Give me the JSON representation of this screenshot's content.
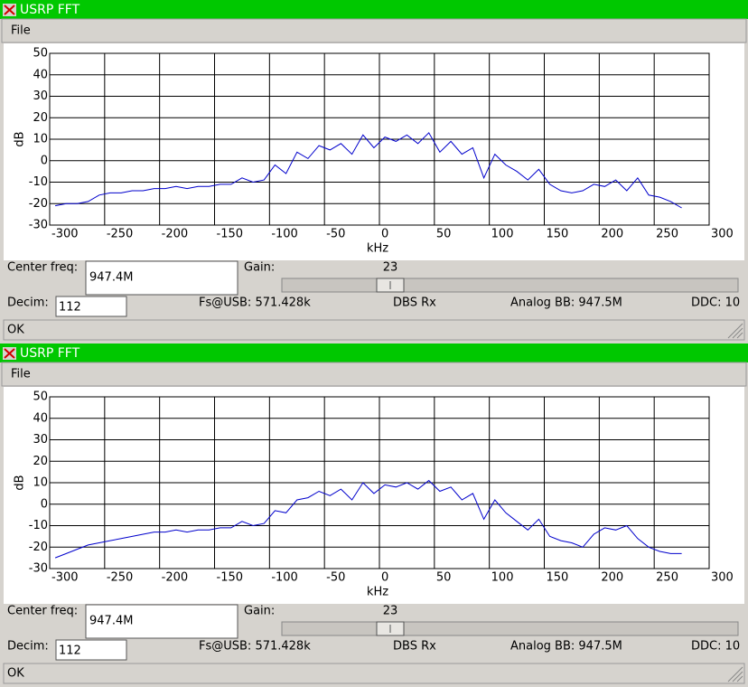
{
  "chart_data": [
    {
      "type": "line",
      "xlabel": "kHz",
      "ylabel": "dB",
      "x": [
        -295,
        -285,
        -275,
        -265,
        -255,
        -245,
        -235,
        -225,
        -215,
        -205,
        -195,
        -185,
        -175,
        -165,
        -155,
        -145,
        -135,
        -125,
        -115,
        -105,
        -95,
        -85,
        -75,
        -65,
        -55,
        -45,
        -35,
        -25,
        -15,
        -5,
        5,
        15,
        25,
        35,
        45,
        55,
        65,
        75,
        85,
        95,
        105,
        115,
        125,
        135,
        145,
        155,
        165,
        175,
        185,
        195,
        205,
        215,
        225,
        235,
        245,
        255,
        265,
        275
      ],
      "values": [
        -21,
        -20,
        -20,
        -19,
        -16,
        -15,
        -15,
        -14,
        -14,
        -13,
        -13,
        -12,
        -13,
        -12,
        -12,
        -11,
        -11,
        -8,
        -10,
        -9,
        -2,
        -6,
        4,
        1,
        7,
        5,
        8,
        3,
        12,
        6,
        11,
        9,
        12,
        8,
        13,
        4,
        9,
        3,
        6,
        -8,
        3,
        -2,
        -5,
        -9,
        -4,
        -11,
        -14,
        -15,
        -14,
        -11,
        -12,
        -9,
        -14,
        -8,
        -16,
        -17,
        -19,
        -22
      ],
      "color": "#0000cc",
      "xlim": [
        -300,
        300
      ],
      "ylim": [
        -30,
        50
      ],
      "xticks": [
        -300,
        -250,
        -200,
        -150,
        -100,
        -50,
        0,
        50,
        100,
        150,
        200,
        250,
        300
      ],
      "yticks": [
        -30,
        -20,
        -10,
        0,
        10,
        20,
        30,
        40,
        50
      ],
      "grid": true
    },
    {
      "type": "line",
      "xlabel": "kHz",
      "ylabel": "dB",
      "x": [
        -295,
        -285,
        -275,
        -265,
        -255,
        -245,
        -235,
        -225,
        -215,
        -205,
        -195,
        -185,
        -175,
        -165,
        -155,
        -145,
        -135,
        -125,
        -115,
        -105,
        -95,
        -85,
        -75,
        -65,
        -55,
        -45,
        -35,
        -25,
        -15,
        -5,
        5,
        15,
        25,
        35,
        45,
        55,
        65,
        75,
        85,
        95,
        105,
        115,
        125,
        135,
        145,
        155,
        165,
        175,
        185,
        195,
        205,
        215,
        225,
        235,
        245,
        255,
        265,
        275
      ],
      "values": [
        -25,
        -23,
        -21,
        -19,
        -18,
        -17,
        -16,
        -15,
        -14,
        -13,
        -13,
        -12,
        -13,
        -12,
        -12,
        -11,
        -11,
        -8,
        -10,
        -9,
        -3,
        -4,
        2,
        3,
        6,
        4,
        7,
        2,
        10,
        5,
        9,
        8,
        10,
        7,
        11,
        6,
        8,
        2,
        5,
        -7,
        2,
        -4,
        -8,
        -12,
        -7,
        -15,
        -17,
        -18,
        -20,
        -14,
        -11,
        -12,
        -10,
        -16,
        -20,
        -22,
        -23,
        -23
      ],
      "color": "#0000cc",
      "xlim": [
        -300,
        300
      ],
      "ylim": [
        -30,
        50
      ],
      "xticks": [
        -300,
        -250,
        -200,
        -150,
        -100,
        -50,
        0,
        50,
        100,
        150,
        200,
        250,
        300
      ],
      "yticks": [
        -30,
        -20,
        -10,
        0,
        10,
        20,
        30,
        40,
        50
      ],
      "grid": true
    }
  ],
  "windows": [
    {
      "title": "USRP FFT",
      "menu": "File",
      "center_freq_label": "Center freq:",
      "center_freq": "947.4M",
      "gain_label": "Gain:",
      "gain": "23",
      "decim_label": "Decim:",
      "decim": "112",
      "fs": "Fs@USB: 571.428k",
      "dboard": "DBS Rx",
      "analog_bb": "Analog BB: 947.5M",
      "ddc": "DDC: 10",
      "status": "OK"
    },
    {
      "title": "USRP FFT",
      "menu": "File",
      "center_freq_label": "Center freq:",
      "center_freq": "947.4M",
      "gain_label": "Gain:",
      "gain": "23",
      "decim_label": "Decim:",
      "decim": "112",
      "fs": "Fs@USB: 571.428k",
      "dboard": "DBS Rx",
      "analog_bb": "Analog BB: 947.5M",
      "ddc": "DDC: 10",
      "status": "OK"
    }
  ]
}
